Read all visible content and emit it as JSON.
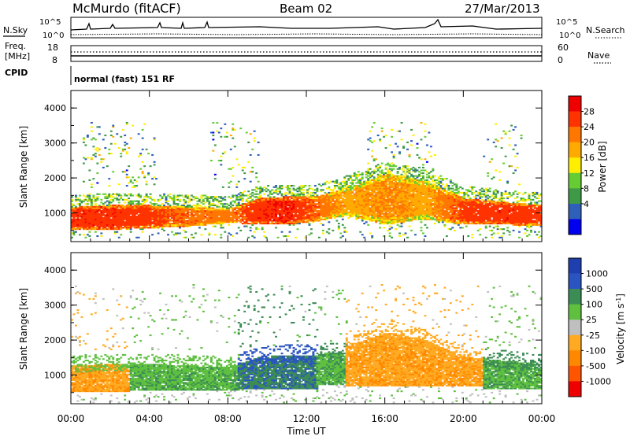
{
  "header": {
    "station": "McMurdo (fitACF)",
    "beam": "Beam 02",
    "date": "27/Mar/2013"
  },
  "status_panel": {
    "nsky_label": "N.Sky",
    "nsearch_label": "N.Search",
    "noise_ticks_left": [
      "10^5",
      "10^0"
    ],
    "noise_ticks_right": [
      "10^5",
      "10^0"
    ],
    "freq_label_line1": "Freq.",
    "freq_label_line2": "[MHz]",
    "freq_ticks": [
      "18",
      "8"
    ],
    "nave_label": "Nave",
    "nave_ticks": [
      "60",
      "0"
    ],
    "cpid_label": "CPID",
    "cpid_text": "normal (fast) 151 RF"
  },
  "colors": {
    "power_scale": [
      "#0000ee",
      "#2f5fb8",
      "#3f9a48",
      "#66cc33",
      "#ffee00",
      "#ffaa00",
      "#ff7700",
      "#ff3300",
      "#ee0000"
    ],
    "velocity_scale": [
      "#1f3fae",
      "#2a55c0",
      "#3c8c55",
      "#5fc040",
      "#bfbfbf",
      "#ffaa22",
      "#ff8800",
      "#ff5500",
      "#ee0000"
    ]
  },
  "chart_data": [
    {
      "type": "heatmap",
      "name": "power",
      "ylabel": "Slant Range [km]",
      "yticks": [
        "4000",
        "3000",
        "2000",
        "1000"
      ],
      "ylim": [
        180,
        4500
      ],
      "xlim_hours": [
        0,
        24
      ],
      "colorbar": {
        "label": "Power [dB]",
        "ticks": [
          "28",
          "24",
          "20",
          "16",
          "12",
          "8",
          "4"
        ],
        "range": [
          0,
          30
        ]
      },
      "main_band": [
        {
          "t": 0,
          "low": 500,
          "high": 1150,
          "v": 27
        },
        {
          "t": 2,
          "low": 500,
          "high": 1200,
          "v": 27
        },
        {
          "t": 4,
          "low": 550,
          "high": 1200,
          "v": 26
        },
        {
          "t": 6,
          "low": 600,
          "high": 1150,
          "v": 24
        },
        {
          "t": 8,
          "low": 700,
          "high": 1100,
          "v": 23
        },
        {
          "t": 9.5,
          "low": 650,
          "high": 1400,
          "v": 27
        },
        {
          "t": 11,
          "low": 650,
          "high": 1450,
          "v": 28
        },
        {
          "t": 12.5,
          "low": 750,
          "high": 1450,
          "v": 24
        },
        {
          "t": 14,
          "low": 900,
          "high": 1700,
          "v": 20
        },
        {
          "t": 16,
          "low": 650,
          "high": 2100,
          "v": 22
        },
        {
          "t": 18,
          "low": 800,
          "high": 1900,
          "v": 20
        },
        {
          "t": 20,
          "low": 650,
          "high": 1400,
          "v": 26
        },
        {
          "t": 22,
          "low": 650,
          "high": 1300,
          "v": 27
        },
        {
          "t": 24,
          "low": 600,
          "high": 1200,
          "v": 26
        }
      ]
    },
    {
      "type": "heatmap",
      "name": "velocity",
      "ylabel": "Slant Range [km]",
      "yticks": [
        "4000",
        "3000",
        "2000",
        "1000"
      ],
      "ylim": [
        180,
        4500
      ],
      "xlim_hours": [
        0,
        24
      ],
      "xticks": [
        "00:00",
        "04:00",
        "08:00",
        "12:00",
        "16:00",
        "20:00",
        "00:00"
      ],
      "xlabel": "Time UT",
      "colorbar": {
        "label": "Velocity [m s^-1]",
        "ticks": [
          "1000",
          "500",
          "100",
          "25",
          "-25",
          "-100",
          "-500",
          "-1000"
        ]
      },
      "segments": [
        {
          "t0": 0,
          "t1": 3,
          "low": 500,
          "high": 1450,
          "v": -100,
          "cap": 25
        },
        {
          "t0": 3,
          "t1": 8.5,
          "low": 550,
          "high": 1350,
          "v": 100,
          "cap": 25
        },
        {
          "t0": 8.5,
          "t1": 12.5,
          "low": 600,
          "high": 1500,
          "v": 500,
          "cap": 500
        },
        {
          "t0": 12.5,
          "t1": 14,
          "low": 700,
          "high": 1450,
          "v": 100,
          "cap": 100
        },
        {
          "t0": 14,
          "t1": 21,
          "low": 650,
          "high": 2100,
          "v": -100,
          "cap": -100
        },
        {
          "t0": 21,
          "t1": 24,
          "low": 600,
          "high": 1350,
          "v": 100,
          "cap": 100
        }
      ]
    }
  ]
}
